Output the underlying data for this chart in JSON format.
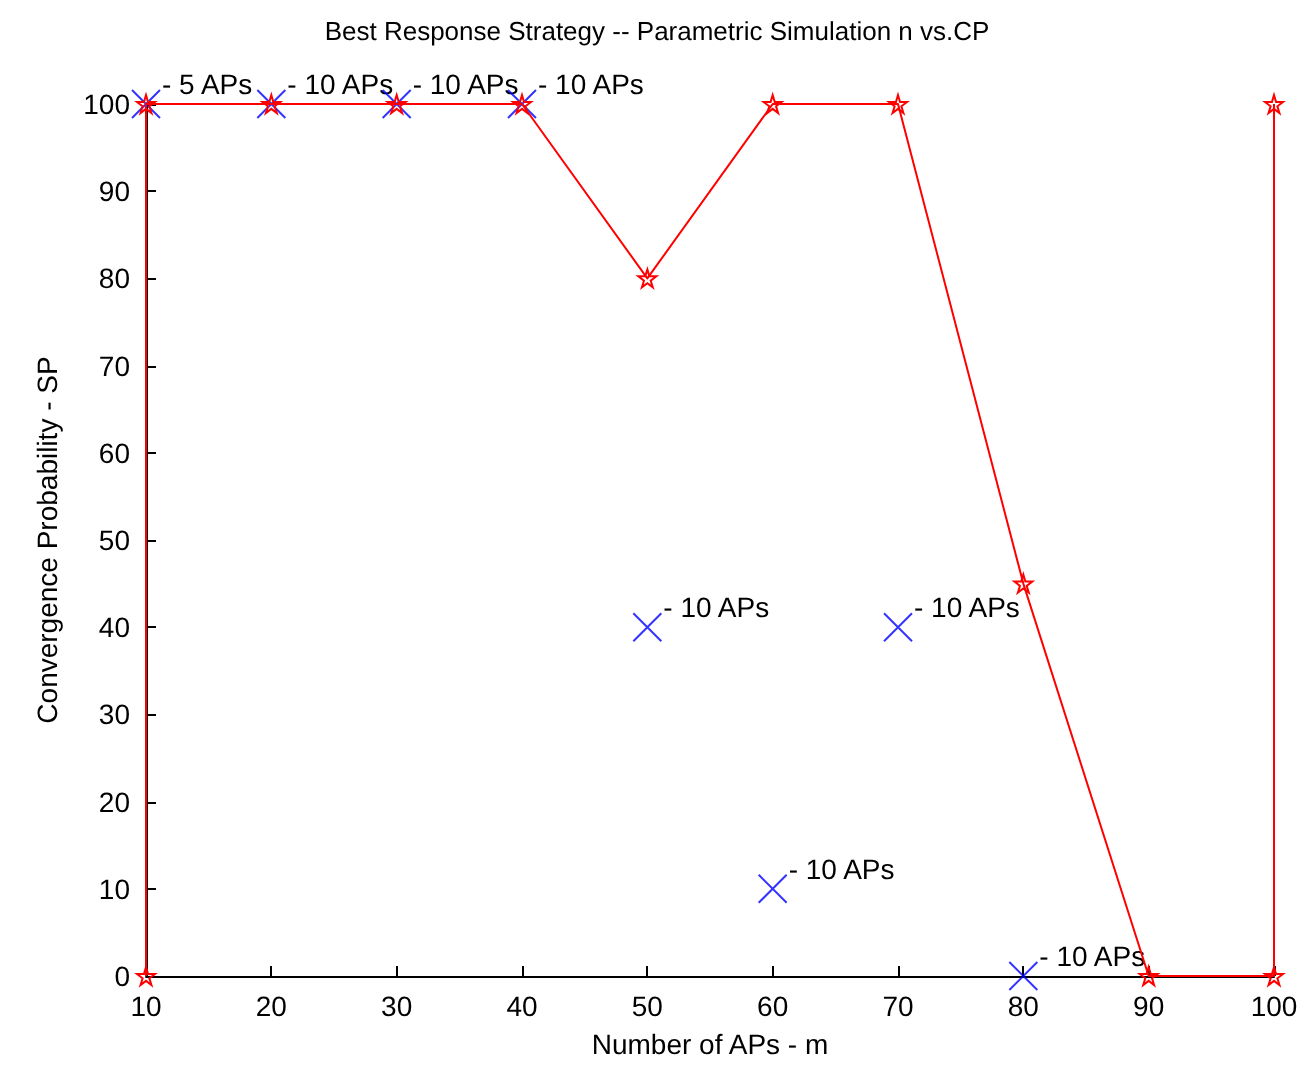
{
  "chart_data": {
    "type": "line",
    "title": "Best Response Strategy -- Parametric Simulation n vs.CP",
    "xlabel": "Number of APs - m",
    "ylabel": "Convergence Probability - SP",
    "xlim": [
      10,
      100
    ],
    "xticks": [
      10,
      20,
      30,
      40,
      50,
      60,
      70,
      80,
      90,
      100
    ],
    "ylim": [
      0,
      100
    ],
    "yticks": [
      0,
      10,
      20,
      30,
      40,
      50,
      60,
      70,
      80,
      90,
      100
    ],
    "grid": false,
    "series": [
      {
        "color": "#ff0000",
        "marker": "star",
        "line_style": "solid",
        "x": [
          10,
          10,
          20,
          30,
          40,
          50,
          60,
          70,
          80,
          90,
          100,
          100
        ],
        "values": [
          0,
          100,
          100,
          100,
          100,
          80,
          100,
          100,
          45,
          0,
          0,
          100
        ]
      },
      {
        "type": "scatter",
        "color": "#0000ff",
        "marker": "cross",
        "x": [
          10,
          20,
          30,
          40,
          50,
          60,
          70,
          80
        ],
        "values": [
          100,
          100,
          100,
          100,
          40,
          10,
          40,
          0
        ]
      }
    ],
    "annotations": [
      {
        "text": "- 5 APs",
        "x": 10,
        "y": 100
      },
      {
        "text": "- 10 APs",
        "x": 20,
        "y": 100
      },
      {
        "text": "- 10 APs",
        "x": 30,
        "y": 100
      },
      {
        "text": "- 10 APs",
        "x": 40,
        "y": 100
      },
      {
        "text": "- 10 APs",
        "x": 50,
        "y": 40
      },
      {
        "text": "- 10 APs",
        "x": 60,
        "y": 10
      },
      {
        "text": "- 10 APs",
        "x": 70,
        "y": 40
      },
      {
        "text": "- 10 APs",
        "x": 80,
        "y": 0
      }
    ]
  }
}
